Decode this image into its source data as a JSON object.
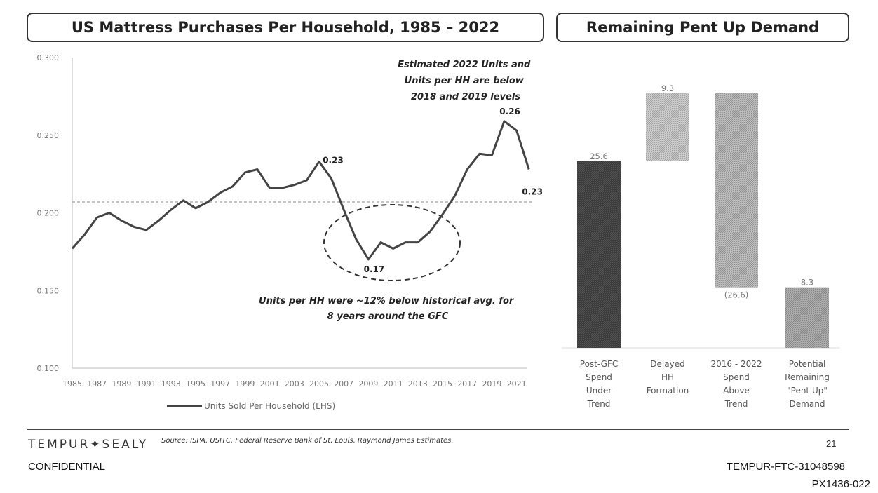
{
  "chart_data": [
    {
      "type": "line",
      "title": "US Mattress Purchases Per Household, 1985 – 2022",
      "x": [
        1985,
        1986,
        1987,
        1988,
        1989,
        1990,
        1991,
        1992,
        1993,
        1994,
        1995,
        1996,
        1997,
        1998,
        1999,
        2000,
        2001,
        2002,
        2003,
        2004,
        2005,
        2006,
        2007,
        2008,
        2009,
        2010,
        2011,
        2012,
        2013,
        2014,
        2015,
        2016,
        2017,
        2018,
        2019,
        2020,
        2021,
        2022
      ],
      "x_tick_labels": [
        "1985",
        "1987",
        "1989",
        "1991",
        "1993",
        "1995",
        "1997",
        "1999",
        "2001",
        "2003",
        "2005",
        "2007",
        "2009",
        "2011",
        "2013",
        "2015",
        "2017",
        "2019",
        "2021"
      ],
      "y_tick_labels": [
        "0.100",
        "0.150",
        "0.200",
        "0.250",
        "0.300"
      ],
      "ylim": [
        0.1,
        0.3
      ],
      "series": [
        {
          "name": "Units Sold Per Household (LHS)",
          "values": [
            0.177,
            0.186,
            0.197,
            0.2,
            0.195,
            0.191,
            0.189,
            0.195,
            0.202,
            0.208,
            0.203,
            0.207,
            0.213,
            0.217,
            0.226,
            0.228,
            0.216,
            0.216,
            0.218,
            0.221,
            0.233,
            0.222,
            0.202,
            0.183,
            0.17,
            0.181,
            0.177,
            0.181,
            0.181,
            0.188,
            0.199,
            0.211,
            0.228,
            0.238,
            0.237,
            0.259,
            0.253,
            0.228
          ]
        }
      ],
      "reference_line": 0.207,
      "data_labels": [
        {
          "x": 2005,
          "y": 0.233,
          "text": "0.23"
        },
        {
          "x": 2009,
          "y": 0.17,
          "text": "0.17"
        },
        {
          "x": 2020,
          "y": 0.259,
          "text": "0.26"
        },
        {
          "x": 2022,
          "y": 0.228,
          "text": "0.23"
        }
      ],
      "annotations": [
        {
          "lines": [
            "Estimated 2022 Units and",
            "Units per HH are below",
            "2018 and 2019 levels"
          ]
        },
        {
          "lines": [
            "Units per HH were ~12% below historical avg. for",
            "8 years around the GFC"
          ]
        }
      ],
      "grid": false,
      "legend_position": "bottom"
    },
    {
      "type": "bar",
      "subtype": "waterfall",
      "title": "Remaining Pent Up Demand",
      "categories": [
        [
          "Post-GFC",
          "Spend",
          "Under",
          "Trend"
        ],
        [
          "Delayed",
          "HH",
          "Formation"
        ],
        [
          "2016 - 2022",
          "Spend",
          "Above",
          "Trend"
        ],
        [
          "Potential",
          "Remaining",
          "\"Pent Up\"",
          "Demand"
        ]
      ],
      "values": [
        25.6,
        9.3,
        -26.6,
        8.3
      ],
      "value_labels": [
        "25.6",
        "9.3",
        "(26.6)",
        "8.3"
      ],
      "colors": [
        "#3a3a3a",
        "#c4c4c4",
        "#b5b5b5",
        "#a8a8a8"
      ]
    }
  ],
  "footer": {
    "brand": "TEMPUR✦SEALY",
    "source": "Source: ISPA, USITC, Federal Reserve Bank of St. Louis, Raymond James Estimates.",
    "page_number": "21",
    "confidential": "CONFIDENTIAL",
    "bates": "TEMPUR-FTC-31048598",
    "exhibit": "PX1436-022"
  }
}
